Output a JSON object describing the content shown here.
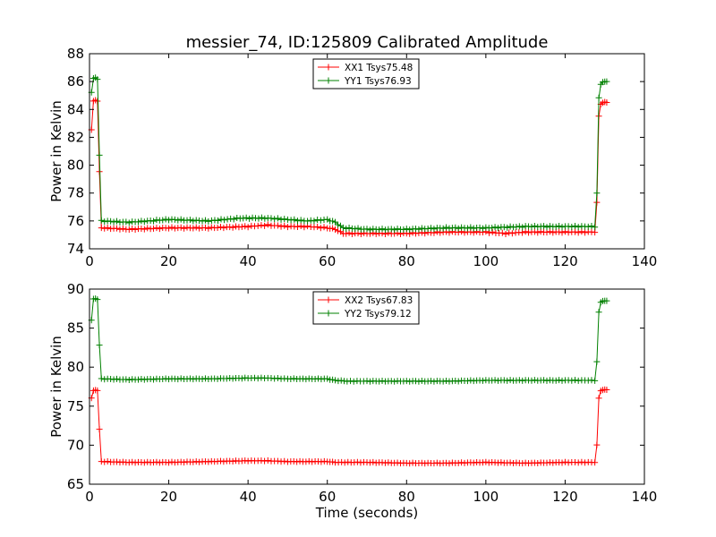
{
  "chart_data": [
    {
      "type": "line",
      "title": "messier_74, ID:125809 Calibrated Amplitude",
      "xlabel": "",
      "ylabel": "Power in Kelvin",
      "xlim": [
        0,
        140
      ],
      "ylim": [
        74,
        88
      ],
      "x_ticks": [
        "0",
        "20",
        "40",
        "60",
        "80",
        "100",
        "120",
        "140"
      ],
      "y_ticks": [
        "74",
        "76",
        "78",
        "80",
        "82",
        "84",
        "86",
        "88"
      ],
      "legend_position": "top-center",
      "grid": false,
      "series": [
        {
          "name": "XX1 Tsys75.48",
          "color": "#ff0000",
          "marker": "plus",
          "points": [
            [
              0.5,
              82.5
            ],
            [
              1.0,
              84.6
            ],
            [
              1.5,
              84.7
            ],
            [
              2.0,
              84.6
            ],
            [
              2.5,
              79.5
            ],
            [
              3.0,
              75.5
            ],
            [
              10,
              75.4
            ],
            [
              20,
              75.5
            ],
            [
              30,
              75.5
            ],
            [
              40,
              75.6
            ],
            [
              45,
              75.7
            ],
            [
              50,
              75.6
            ],
            [
              55,
              75.6
            ],
            [
              60,
              75.5
            ],
            [
              62,
              75.4
            ],
            [
              64,
              75.1
            ],
            [
              70,
              75.1
            ],
            [
              80,
              75.1
            ],
            [
              90,
              75.2
            ],
            [
              100,
              75.2
            ],
            [
              105,
              75.1
            ],
            [
              110,
              75.2
            ],
            [
              120,
              75.2
            ],
            [
              127.5,
              75.2
            ],
            [
              128.0,
              77.3
            ],
            [
              128.5,
              83.5
            ],
            [
              129.0,
              84.4
            ],
            [
              129.5,
              84.5
            ],
            [
              130.0,
              84.5
            ],
            [
              130.5,
              84.5
            ]
          ]
        },
        {
          "name": "YY1 Tsys76.93",
          "color": "#008000",
          "marker": "plus",
          "points": [
            [
              0.5,
              85.2
            ],
            [
              1.0,
              86.2
            ],
            [
              1.5,
              86.3
            ],
            [
              2.0,
              86.2
            ],
            [
              2.5,
              80.7
            ],
            [
              3.0,
              76.0
            ],
            [
              10,
              75.9
            ],
            [
              20,
              76.1
            ],
            [
              30,
              76.0
            ],
            [
              38,
              76.2
            ],
            [
              45,
              76.2
            ],
            [
              50,
              76.1
            ],
            [
              55,
              76.0
            ],
            [
              60,
              76.1
            ],
            [
              62,
              75.9
            ],
            [
              64,
              75.5
            ],
            [
              70,
              75.4
            ],
            [
              80,
              75.4
            ],
            [
              90,
              75.5
            ],
            [
              100,
              75.5
            ],
            [
              110,
              75.6
            ],
            [
              120,
              75.6
            ],
            [
              127.5,
              75.6
            ],
            [
              128.0,
              78.0
            ],
            [
              128.5,
              84.8
            ],
            [
              129.0,
              85.8
            ],
            [
              129.5,
              86.0
            ],
            [
              130.0,
              86.0
            ],
            [
              130.5,
              86.0
            ]
          ]
        }
      ]
    },
    {
      "type": "line",
      "title": "",
      "xlabel": "Time (seconds)",
      "ylabel": "Power in Kelvin",
      "xlim": [
        0,
        140
      ],
      "ylim": [
        65,
        90
      ],
      "x_ticks": [
        "0",
        "20",
        "40",
        "60",
        "80",
        "100",
        "120",
        "140"
      ],
      "y_ticks": [
        "65",
        "70",
        "75",
        "80",
        "85",
        "90"
      ],
      "legend_position": "top-center",
      "grid": false,
      "series": [
        {
          "name": "XX2 Tsys67.83",
          "color": "#ff0000",
          "marker": "plus",
          "points": [
            [
              0.5,
              76.0
            ],
            [
              1.0,
              77.0
            ],
            [
              1.5,
              77.1
            ],
            [
              2.0,
              77.0
            ],
            [
              2.5,
              72.0
            ],
            [
              3.0,
              67.9
            ],
            [
              10,
              67.8
            ],
            [
              20,
              67.8
            ],
            [
              30,
              67.9
            ],
            [
              40,
              68.0
            ],
            [
              45,
              68.0
            ],
            [
              50,
              67.9
            ],
            [
              60,
              67.9
            ],
            [
              62,
              67.8
            ],
            [
              70,
              67.8
            ],
            [
              80,
              67.7
            ],
            [
              90,
              67.7
            ],
            [
              100,
              67.8
            ],
            [
              110,
              67.7
            ],
            [
              120,
              67.8
            ],
            [
              127.5,
              67.8
            ],
            [
              128.0,
              70.0
            ],
            [
              128.5,
              76.0
            ],
            [
              129.0,
              77.0
            ],
            [
              129.5,
              77.1
            ],
            [
              130.0,
              77.1
            ],
            [
              130.5,
              77.1
            ]
          ]
        },
        {
          "name": "YY2 Tsys79.12",
          "color": "#008000",
          "marker": "plus",
          "points": [
            [
              0.5,
              86.0
            ],
            [
              1.0,
              88.7
            ],
            [
              1.5,
              88.8
            ],
            [
              2.0,
              88.7
            ],
            [
              2.5,
              82.8
            ],
            [
              3.0,
              78.5
            ],
            [
              10,
              78.4
            ],
            [
              20,
              78.5
            ],
            [
              30,
              78.5
            ],
            [
              40,
              78.6
            ],
            [
              45,
              78.6
            ],
            [
              50,
              78.5
            ],
            [
              60,
              78.5
            ],
            [
              62,
              78.3
            ],
            [
              65,
              78.2
            ],
            [
              70,
              78.2
            ],
            [
              80,
              78.2
            ],
            [
              90,
              78.2
            ],
            [
              100,
              78.3
            ],
            [
              110,
              78.3
            ],
            [
              120,
              78.3
            ],
            [
              127.5,
              78.3
            ],
            [
              128.0,
              80.7
            ],
            [
              128.5,
              87.0
            ],
            [
              129.0,
              88.3
            ],
            [
              129.5,
              88.5
            ],
            [
              130.0,
              88.5
            ],
            [
              130.5,
              88.5
            ]
          ]
        }
      ]
    }
  ]
}
